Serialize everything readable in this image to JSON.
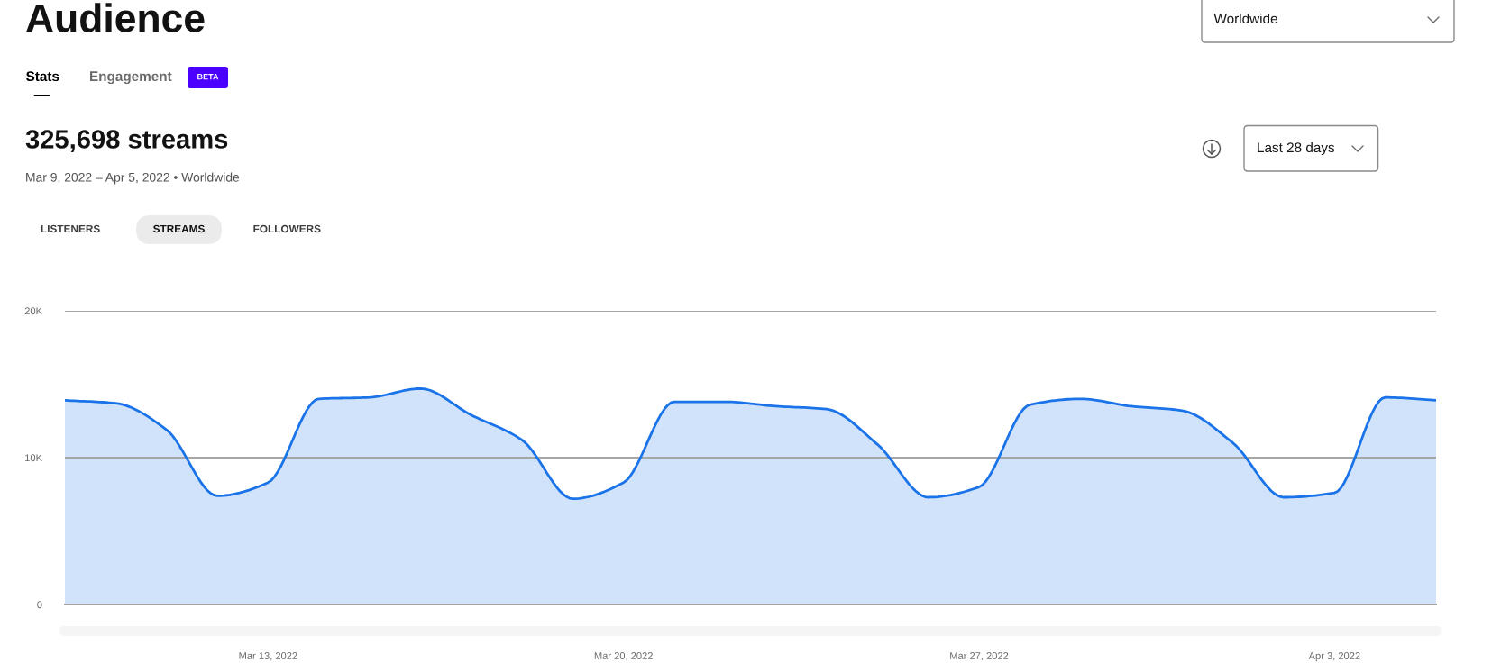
{
  "chart_data": {
    "type": "area",
    "title": "Audience",
    "subtitle": "325,698 streams",
    "annotations": [
      "Stats",
      "Engagement",
      "BETA",
      "Mar 9, 2022 – Apr 5, 2022 • Worldwide",
      "LISTENERS",
      "STREAMS",
      "FOLLOWERS",
      "Worldwide",
      "Last 28 days"
    ],
    "x": [
      "2022-03-09",
      "2022-03-10",
      "2022-03-11",
      "2022-03-12",
      "2022-03-13",
      "2022-03-14",
      "2022-03-15",
      "2022-03-16",
      "2022-03-17",
      "2022-03-18",
      "2022-03-19",
      "2022-03-20",
      "2022-03-21",
      "2022-03-22",
      "2022-03-23",
      "2022-03-24",
      "2022-03-25",
      "2022-03-26",
      "2022-03-27",
      "2022-03-28",
      "2022-03-29",
      "2022-03-30",
      "2022-03-31",
      "2022-04-01",
      "2022-04-02",
      "2022-04-03",
      "2022-04-04",
      "2022-04-05"
    ],
    "series": [
      {
        "color": "#1a73e8",
        "values": [
          13900,
          13700,
          11900,
          7400,
          8300,
          14000,
          14100,
          14700,
          12900,
          11200,
          7200,
          8300,
          13800,
          13800,
          13500,
          13300,
          10900,
          7300,
          8000,
          13600,
          14000,
          13500,
          13200,
          11000,
          7300,
          7600,
          14100,
          13900
        ]
      }
    ],
    "xlim": [
      "2022-03-09",
      "2022-04-05"
    ],
    "xticks": [
      {
        "value": "2022-03-13",
        "label": "Mar 13, 2022"
      },
      {
        "value": "2022-03-20",
        "label": "Mar 20, 2022"
      },
      {
        "value": "2022-03-27",
        "label": "Mar 27, 2022"
      },
      {
        "value": "2022-04-03",
        "label": "Apr 3, 2022"
      }
    ],
    "ylim": [
      0,
      20000
    ],
    "yticks": [
      0,
      {
        "value": 10000,
        "label": "10K"
      },
      {
        "value": 20000,
        "label": "20K"
      }
    ],
    "grid": "y"
  }
}
